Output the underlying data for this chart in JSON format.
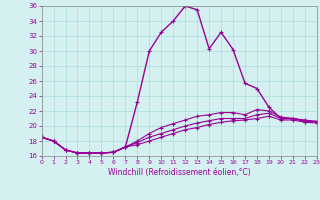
{
  "xlabel": "Windchill (Refroidissement éolien,°C)",
  "background_color": "#d4f0f0",
  "grid_color": "#aadddd",
  "line_color": "#990099",
  "xlim": [
    0,
    23
  ],
  "ylim": [
    16,
    36
  ],
  "yticks": [
    16,
    18,
    20,
    22,
    24,
    26,
    28,
    30,
    32,
    34,
    36
  ],
  "xticks": [
    0,
    1,
    2,
    3,
    4,
    5,
    6,
    7,
    8,
    9,
    10,
    11,
    12,
    13,
    14,
    15,
    16,
    17,
    18,
    19,
    20,
    21,
    22,
    23
  ],
  "series": [
    [
      18.5,
      18.0,
      16.8,
      16.4,
      16.4,
      16.4,
      16.5,
      17.2,
      23.2,
      30.0,
      32.5,
      34.0,
      36.0,
      35.5,
      30.3,
      32.5,
      30.2,
      25.7,
      25.0,
      22.5,
      21.0,
      21.0,
      20.6,
      20.6
    ],
    [
      18.5,
      18.0,
      16.8,
      16.4,
      16.4,
      16.4,
      16.5,
      17.2,
      18.0,
      19.0,
      19.8,
      20.3,
      20.8,
      21.3,
      21.5,
      21.8,
      21.8,
      21.5,
      22.2,
      22.0,
      21.2,
      21.0,
      20.8,
      20.6
    ],
    [
      18.5,
      18.0,
      16.8,
      16.4,
      16.4,
      16.4,
      16.5,
      17.2,
      17.8,
      18.5,
      19.0,
      19.5,
      20.0,
      20.4,
      20.7,
      21.0,
      21.0,
      21.0,
      21.5,
      21.7,
      21.0,
      21.0,
      20.7,
      20.6
    ],
    [
      18.5,
      18.0,
      16.8,
      16.4,
      16.4,
      16.4,
      16.5,
      17.2,
      17.5,
      18.0,
      18.5,
      19.0,
      19.5,
      19.8,
      20.2,
      20.5,
      20.7,
      20.8,
      21.0,
      21.3,
      20.8,
      20.8,
      20.5,
      20.4
    ]
  ]
}
